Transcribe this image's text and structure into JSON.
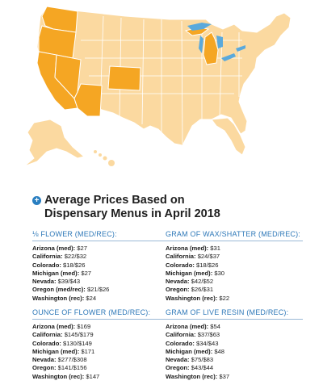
{
  "colors": {
    "highlight": "#f5a623",
    "base": "#fbd9a0",
    "border": "#ffffff",
    "water": "#5aa9dc",
    "accent": "#2e78b8"
  },
  "heading": {
    "icon": "plus-circle-icon",
    "line1": "Average Prices Based on",
    "line2": "Dispensary Menus in April 2018"
  },
  "sections": {
    "eighth": {
      "title": "⅛ FLOWER (MED/REC):",
      "rows": [
        {
          "label": "Arizona (med):",
          "value": "$27"
        },
        {
          "label": "California:",
          "value": "$22/$32"
        },
        {
          "label": "Colorado:",
          "value": "$18/$26"
        },
        {
          "label": "Michigan (med):",
          "value": "$27"
        },
        {
          "label": "Nevada:",
          "value": "$39/$43"
        },
        {
          "label": "Oregon (med/rec):",
          "value": "$21/$26"
        },
        {
          "label": "Washington (rec):",
          "value": "$24"
        }
      ]
    },
    "wax": {
      "title": "GRAM OF WAX/SHATTER (MED/REC):",
      "rows": [
        {
          "label": "Arizona (med):",
          "value": "$31"
        },
        {
          "label": "California:",
          "value": "$24/$37"
        },
        {
          "label": "Colorado:",
          "value": "$18/$26"
        },
        {
          "label": "Michigan (med):",
          "value": "$30"
        },
        {
          "label": "Nevada:",
          "value": "$42/$52"
        },
        {
          "label": "Oregon:",
          "value": "$26/$31"
        },
        {
          "label": "Washington (rec):",
          "value": "$22"
        }
      ]
    },
    "ounce": {
      "title": "OUNCE OF FLOWER (MED/REC):",
      "rows": [
        {
          "label": "Arizona (med):",
          "value": "$169"
        },
        {
          "label": "California:",
          "value": "$145/$179"
        },
        {
          "label": "Colorado:",
          "value": "$130/$149"
        },
        {
          "label": "Michigan (med):",
          "value": "$171"
        },
        {
          "label": "Nevada:",
          "value": "$277/$308"
        },
        {
          "label": "Oregon:",
          "value": "$141/$156"
        },
        {
          "label": "Washington (rec):",
          "value": "$147"
        }
      ]
    },
    "resin": {
      "title": "GRAM OF LIVE RESIN (MED/REC):",
      "rows": [
        {
          "label": "Arizona (med):",
          "value": "$54"
        },
        {
          "label": "California:",
          "value": "$37/$63"
        },
        {
          "label": "Colorado:",
          "value": "$34/$43"
        },
        {
          "label": "Michigan (med):",
          "value": "$48"
        },
        {
          "label": "Nevada:",
          "value": "$75/$83"
        },
        {
          "label": "Oregon:",
          "value": "$43/$44"
        },
        {
          "label": "Washington (rec):",
          "value": "$37"
        }
      ]
    }
  },
  "map": {
    "highlighted_states": [
      "Washington",
      "Oregon",
      "California",
      "Nevada",
      "Arizona",
      "Colorado",
      "Michigan"
    ]
  }
}
